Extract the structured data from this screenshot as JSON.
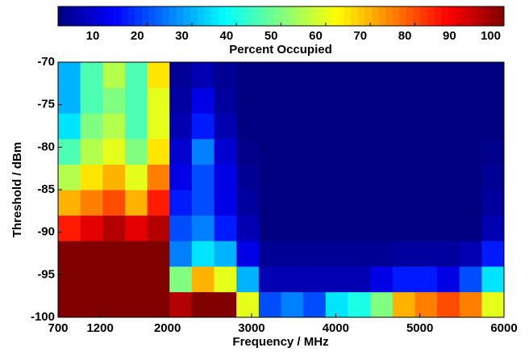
{
  "chart_data": {
    "type": "heatmap",
    "xlabel": "Frequency / MHz",
    "ylabel": "Threshold / dBm",
    "colorbar_label": "Percent Occupied",
    "xlim": [
      700,
      6000
    ],
    "xticks": [
      700,
      1200,
      2000,
      3000,
      4000,
      5000,
      6000
    ],
    "ylim": [
      -100,
      -70
    ],
    "yticks": [
      -70,
      -75,
      -80,
      -85,
      -90,
      -95,
      -100
    ],
    "clim": [
      0,
      100
    ],
    "cticks": [
      10,
      20,
      30,
      40,
      50,
      60,
      70,
      80,
      90,
      100
    ],
    "colormap": "jet",
    "x": [
      832.5,
      1097.5,
      1362.5,
      1627.5,
      1892.5,
      2157.5,
      2422.5,
      2687.5,
      2952.5,
      3217.5,
      3482.5,
      3747.5,
      4012.5,
      4277.5,
      4542.5,
      4807.5,
      5072.5,
      5337.5,
      5602.5,
      5867.5
    ],
    "y": [
      -98.5,
      -95.5,
      -92.5,
      -89.5,
      -86.5,
      -83.5,
      -80.5,
      -77.5,
      -74.5,
      -71.5
    ],
    "z": [
      [
        100,
        100,
        100,
        100,
        100,
        95,
        100,
        100,
        60,
        20,
        25,
        20,
        35,
        40,
        50,
        70,
        75,
        80,
        75,
        60
      ],
      [
        100,
        100,
        100,
        100,
        100,
        50,
        70,
        60,
        30,
        5,
        5,
        5,
        5,
        5,
        10,
        15,
        15,
        10,
        20,
        35
      ],
      [
        100,
        100,
        100,
        100,
        100,
        25,
        35,
        30,
        10,
        2,
        2,
        2,
        2,
        2,
        2,
        3,
        3,
        3,
        5,
        15
      ],
      [
        85,
        90,
        95,
        90,
        95,
        20,
        25,
        15,
        5,
        0,
        0,
        0,
        0,
        0,
        0,
        0,
        0,
        0,
        0,
        5
      ],
      [
        70,
        75,
        80,
        70,
        85,
        15,
        20,
        10,
        3,
        0,
        0,
        0,
        0,
        0,
        0,
        0,
        0,
        0,
        0,
        3
      ],
      [
        55,
        65,
        70,
        60,
        75,
        10,
        20,
        10,
        2,
        0,
        0,
        0,
        0,
        0,
        0,
        0,
        0,
        0,
        0,
        2
      ],
      [
        45,
        55,
        60,
        50,
        65,
        8,
        25,
        8,
        1,
        0,
        0,
        0,
        0,
        0,
        0,
        0,
        0,
        0,
        0,
        1
      ],
      [
        35,
        50,
        55,
        45,
        60,
        5,
        15,
        5,
        0,
        0,
        0,
        0,
        0,
        0,
        0,
        0,
        0,
        0,
        0,
        0
      ],
      [
        30,
        45,
        50,
        45,
        60,
        3,
        10,
        3,
        0,
        0,
        0,
        0,
        0,
        0,
        0,
        0,
        0,
        0,
        0,
        0
      ],
      [
        30,
        45,
        55,
        45,
        65,
        2,
        5,
        2,
        0,
        0,
        0,
        0,
        0,
        0,
        0,
        0,
        0,
        0,
        0,
        0
      ]
    ]
  }
}
